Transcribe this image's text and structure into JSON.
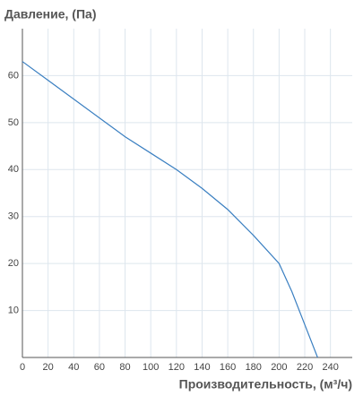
{
  "chart_data": {
    "type": "line",
    "title": "Давление, (Па)",
    "x_label": "Производительность, (м³/ч)",
    "x": [
      0,
      20,
      40,
      60,
      80,
      100,
      120,
      140,
      160,
      180,
      200,
      210,
      220,
      230
    ],
    "series": [
      {
        "color": "#3a7fc1",
        "values": [
          63,
          59,
          55,
          51,
          47,
          43.5,
          40,
          36,
          31.5,
          26,
          20,
          14,
          7,
          0
        ]
      }
    ],
    "xlim": [
      0,
      257
    ],
    "ylim": [
      0,
      70
    ],
    "xticks": [
      0,
      20,
      40,
      60,
      80,
      100,
      120,
      140,
      160,
      180,
      200,
      220,
      240
    ],
    "yticks": [
      10,
      20,
      30,
      40,
      50,
      60
    ],
    "grid": true
  }
}
